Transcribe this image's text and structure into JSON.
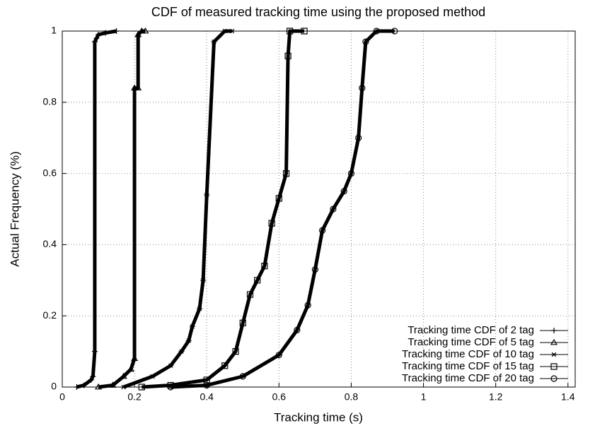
{
  "chart_data": {
    "type": "line",
    "title": "CDF of measured tracking time using the proposed method",
    "x_label": "Tracking time (s)",
    "y_label": "Actual Frequency (%)",
    "xlim": [
      0,
      1.42
    ],
    "xticks": [
      0,
      0.2,
      0.4,
      0.6,
      0.8,
      1,
      1.2,
      1.4
    ],
    "ylim": [
      0,
      1
    ],
    "yticks": [
      0,
      0.2,
      0.4,
      0.6,
      0.8,
      1
    ],
    "grid": true,
    "legend": "lower right",
    "series": [
      {
        "name": "Tracking time CDF of 2 tag",
        "color": "#000000",
        "marker": "plus",
        "x": [
          0.04,
          0.06,
          0.08,
          0.085,
          0.09,
          0.09,
          0.095,
          0.1,
          0.12,
          0.15
        ],
        "values": [
          0,
          0.005,
          0.02,
          0.03,
          0.1,
          0.97,
          0.98,
          0.99,
          0.995,
          1
        ]
      },
      {
        "name": "Tracking time CDF of 5 tag",
        "color": "#000000",
        "marker": "triangle",
        "x": [
          0.1,
          0.14,
          0.17,
          0.19,
          0.2,
          0.2,
          0.21,
          0.21,
          0.22,
          0.23
        ],
        "values": [
          0,
          0.005,
          0.03,
          0.05,
          0.08,
          0.84,
          0.84,
          0.99,
          1,
          1
        ]
      },
      {
        "name": "Tracking time CDF of 10 tag",
        "color": "#000000",
        "marker": "star",
        "x": [
          0.17,
          0.25,
          0.3,
          0.33,
          0.35,
          0.36,
          0.38,
          0.39,
          0.4,
          0.42,
          0.45,
          0.47
        ],
        "values": [
          0,
          0.03,
          0.06,
          0.1,
          0.13,
          0.17,
          0.22,
          0.3,
          0.54,
          0.97,
          1,
          1
        ]
      },
      {
        "name": "Tracking time CDF of 15 tag",
        "color": "#000000",
        "marker": "square",
        "x": [
          0.22,
          0.3,
          0.4,
          0.45,
          0.48,
          0.5,
          0.52,
          0.54,
          0.56,
          0.58,
          0.6,
          0.62,
          0.625,
          0.63,
          0.67
        ],
        "values": [
          0,
          0.005,
          0.02,
          0.06,
          0.1,
          0.18,
          0.26,
          0.3,
          0.34,
          0.46,
          0.53,
          0.6,
          0.93,
          1,
          1
        ]
      },
      {
        "name": "Tracking time CDF of 20 tag",
        "color": "#000000",
        "marker": "circle",
        "x": [
          0.3,
          0.4,
          0.5,
          0.6,
          0.65,
          0.68,
          0.7,
          0.72,
          0.75,
          0.78,
          0.8,
          0.82,
          0.83,
          0.84,
          0.87,
          0.92
        ],
        "values": [
          0,
          0.005,
          0.03,
          0.09,
          0.16,
          0.23,
          0.33,
          0.44,
          0.5,
          0.55,
          0.6,
          0.7,
          0.84,
          0.97,
          1,
          1
        ]
      }
    ]
  }
}
